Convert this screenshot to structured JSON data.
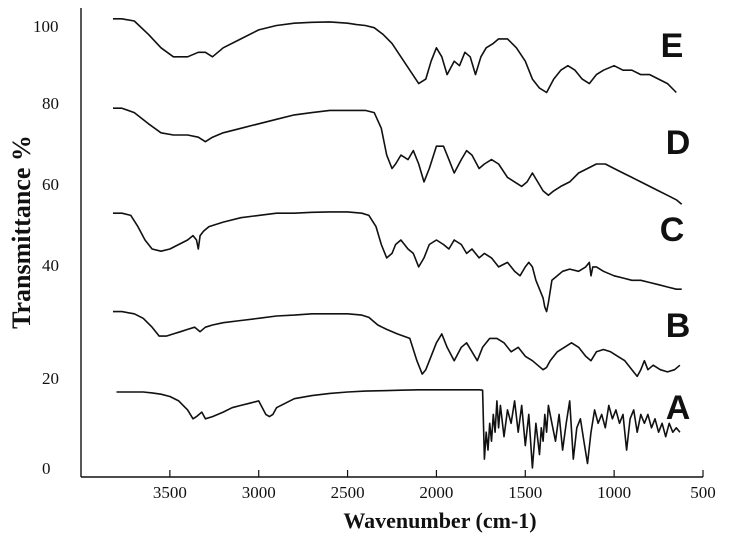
{
  "chart_data": {
    "type": "line",
    "title": "",
    "xlabel": "Wavenumber (cm-1)",
    "ylabel": "Transmittance %",
    "xlim": [
      4000,
      500
    ],
    "x_reversed": true,
    "ylim": [
      0,
      100
    ],
    "x_ticks": [
      "3500",
      "3000",
      "2500",
      "2000",
      "1500",
      "1000",
      "500"
    ],
    "y_ticks": [
      "100",
      "80",
      "60",
      "40",
      "20",
      "0"
    ],
    "grid": false,
    "legend": "none",
    "series": [
      {
        "name": "E",
        "x": [
          3820,
          3770,
          3700,
          3620,
          3550,
          3480,
          3400,
          3340,
          3300,
          3260,
          3200,
          3100,
          3000,
          2900,
          2800,
          2700,
          2600,
          2500,
          2450,
          2400,
          2350,
          2300,
          2250,
          2200,
          2150,
          2100,
          2060,
          2030,
          2000,
          1970,
          1940,
          1900,
          1870,
          1840,
          1810,
          1780,
          1750,
          1720,
          1680,
          1650,
          1600,
          1550,
          1500,
          1460,
          1420,
          1380,
          1340,
          1300,
          1260,
          1220,
          1180,
          1140,
          1100,
          1060,
          1000,
          950,
          900,
          850,
          800,
          750,
          700,
          650
        ],
        "y": [
          100.5,
          100.5,
          100,
          97,
          94,
          92,
          92,
          93,
          93,
          92,
          94,
          96,
          98,
          99,
          99.5,
          99.7,
          99.8,
          99.5,
          99.2,
          99,
          98.5,
          97,
          95,
          92,
          89,
          86,
          87,
          91,
          94,
          92,
          88,
          91,
          90,
          93,
          92,
          88,
          92,
          94,
          95,
          96,
          96,
          94,
          91,
          87,
          85,
          84,
          87,
          89,
          90,
          89,
          87,
          86,
          88,
          89,
          90,
          89,
          89,
          88,
          88,
          87,
          86,
          84
        ]
      },
      {
        "name": "D",
        "x": [
          3820,
          3770,
          3700,
          3620,
          3550,
          3480,
          3400,
          3340,
          3300,
          3260,
          3200,
          3100,
          3000,
          2900,
          2800,
          2700,
          2600,
          2500,
          2450,
          2400,
          2350,
          2310,
          2280,
          2250,
          2230,
          2200,
          2160,
          2130,
          2100,
          2070,
          2040,
          2000,
          1960,
          1930,
          1900,
          1860,
          1830,
          1800,
          1760,
          1730,
          1690,
          1650,
          1600,
          1560,
          1520,
          1490,
          1460,
          1430,
          1400,
          1370,
          1340,
          1300,
          1250,
          1200,
          1150,
          1100,
          1050,
          1000,
          950,
          900,
          850,
          800,
          750,
          700,
          650,
          620
        ],
        "y": [
          80.5,
          80.5,
          79.5,
          77,
          75,
          74.5,
          74.5,
          74,
          73,
          74,
          75,
          76,
          77,
          78,
          79,
          79.5,
          80,
          80,
          80,
          80,
          79.5,
          76,
          70,
          67,
          68,
          70,
          69,
          71,
          68,
          64,
          67,
          72,
          72,
          69,
          66,
          69,
          71,
          70,
          67,
          68,
          69,
          68,
          65,
          64,
          63,
          64,
          66,
          64,
          62,
          61,
          62,
          63,
          64,
          66,
          67,
          68,
          68,
          67,
          66,
          65,
          64,
          63,
          62,
          61,
          60,
          59
        ]
      },
      {
        "name": "C",
        "x": [
          3820,
          3770,
          3720,
          3680,
          3640,
          3600,
          3550,
          3500,
          3450,
          3400,
          3370,
          3350,
          3340,
          3330,
          3310,
          3280,
          3240,
          3200,
          3100,
          3000,
          2900,
          2800,
          2700,
          2600,
          2500,
          2420,
          2380,
          2340,
          2310,
          2280,
          2250,
          2230,
          2200,
          2160,
          2130,
          2100,
          2070,
          2040,
          2000,
          1960,
          1930,
          1900,
          1860,
          1830,
          1800,
          1760,
          1730,
          1690,
          1650,
          1600,
          1560,
          1530,
          1500,
          1480,
          1460,
          1440,
          1420,
          1400,
          1390,
          1380,
          1370,
          1350,
          1320,
          1290,
          1250,
          1200,
          1160,
          1140,
          1130,
          1120,
          1100,
          1060,
          1000,
          950,
          900,
          850,
          800,
          750,
          700,
          650,
          620
        ],
        "y": [
          57,
          57,
          56.5,
          54,
          51,
          49,
          48.5,
          49,
          50,
          51,
          52,
          51,
          49,
          52,
          53,
          54,
          54.5,
          55,
          56,
          56.5,
          57,
          57,
          57.2,
          57.3,
          57.3,
          57,
          56.5,
          54,
          50,
          47,
          48,
          50,
          51,
          49,
          48,
          45,
          47,
          50,
          51,
          50,
          49,
          51,
          50,
          48,
          49,
          47,
          48,
          47,
          45,
          46,
          44,
          43,
          45,
          46,
          45,
          42,
          40,
          38,
          36,
          35,
          37,
          42,
          43,
          44,
          44.5,
          44,
          45,
          46,
          43,
          45,
          45,
          44,
          43,
          42.5,
          42,
          42,
          41.5,
          41,
          40.5,
          40,
          40
        ]
      },
      {
        "name": "B",
        "x": [
          3820,
          3770,
          3700,
          3650,
          3600,
          3560,
          3520,
          3480,
          3440,
          3400,
          3360,
          3330,
          3300,
          3260,
          3200,
          3100,
          3000,
          2900,
          2800,
          2700,
          2600,
          2500,
          2420,
          2380,
          2330,
          2280,
          2220,
          2150,
          2110,
          2080,
          2060,
          2030,
          2000,
          1970,
          1940,
          1900,
          1860,
          1830,
          1800,
          1770,
          1740,
          1700,
          1660,
          1620,
          1580,
          1540,
          1500,
          1460,
          1430,
          1400,
          1380,
          1360,
          1320,
          1280,
          1240,
          1200,
          1160,
          1130,
          1100,
          1060,
          1020,
          980,
          940,
          900,
          870,
          850,
          830,
          810,
          780,
          740,
          700,
          660,
          630
        ],
        "y": [
          35,
          35,
          34.5,
          33.5,
          31.5,
          29.5,
          29.5,
          30,
          30.5,
          31,
          31.5,
          30.5,
          31.5,
          32,
          32.5,
          33,
          33.5,
          34,
          34.2,
          34.5,
          34.5,
          34.5,
          34.2,
          33.7,
          32,
          31,
          30,
          29,
          24,
          21,
          22,
          25,
          28,
          30,
          27,
          24,
          27,
          28,
          26,
          24,
          27,
          29,
          29,
          28,
          26,
          27,
          25,
          24,
          23,
          22,
          22.5,
          24,
          26,
          27,
          28,
          27,
          25,
          24,
          26,
          26.5,
          26,
          25,
          24,
          22,
          20.5,
          22,
          24,
          22,
          23,
          22,
          21.5,
          22,
          23
        ]
      },
      {
        "name": "A",
        "x": [
          3800,
          3750,
          3700,
          3650,
          3600,
          3550,
          3500,
          3450,
          3400,
          3370,
          3350,
          3320,
          3300,
          3260,
          3200,
          3150,
          3100,
          3050,
          3000,
          2980,
          2960,
          2940,
          2920,
          2900,
          2850,
          2800,
          2700,
          2600,
          2500,
          2400,
          2300,
          2200,
          2100,
          2000,
          1900,
          1800,
          1760,
          1740,
          1730,
          1720,
          1710,
          1700,
          1690,
          1680,
          1670,
          1660,
          1650,
          1640,
          1620,
          1600,
          1580,
          1560,
          1540,
          1520,
          1500,
          1480,
          1460,
          1440,
          1420,
          1410,
          1400,
          1390,
          1380,
          1370,
          1350,
          1330,
          1310,
          1290,
          1270,
          1250,
          1230,
          1210,
          1190,
          1170,
          1150,
          1130,
          1110,
          1090,
          1070,
          1050,
          1030,
          1010,
          990,
          970,
          950,
          930,
          910,
          890,
          870,
          850,
          830,
          810,
          790,
          770,
          750,
          730,
          710,
          690,
          670,
          650,
          630
        ],
        "y": [
          17,
          17,
          17,
          17,
          16.8,
          16.5,
          16,
          15,
          13,
          11,
          11.5,
          12.5,
          11,
          11.5,
          12.5,
          13.5,
          14,
          14.5,
          15,
          13.5,
          12,
          11.5,
          12,
          13.5,
          14.5,
          15.5,
          16.2,
          16.7,
          17,
          17.2,
          17.3,
          17.4,
          17.5,
          17.5,
          17.5,
          17.5,
          17.5,
          17.4,
          2,
          8,
          4,
          10,
          6,
          12,
          8,
          15,
          9,
          14,
          7,
          13,
          10,
          15,
          8,
          14,
          5,
          12,
          0,
          10,
          3,
          9,
          6,
          12,
          8,
          14,
          10,
          6,
          12,
          4,
          10,
          15,
          2,
          9,
          11,
          6,
          1,
          8,
          13,
          10,
          12,
          9,
          14,
          11,
          13,
          10,
          12,
          4,
          11,
          13,
          8,
          12,
          10,
          12,
          9,
          11,
          8,
          10,
          7,
          10,
          8,
          9,
          8
        ]
      }
    ]
  }
}
